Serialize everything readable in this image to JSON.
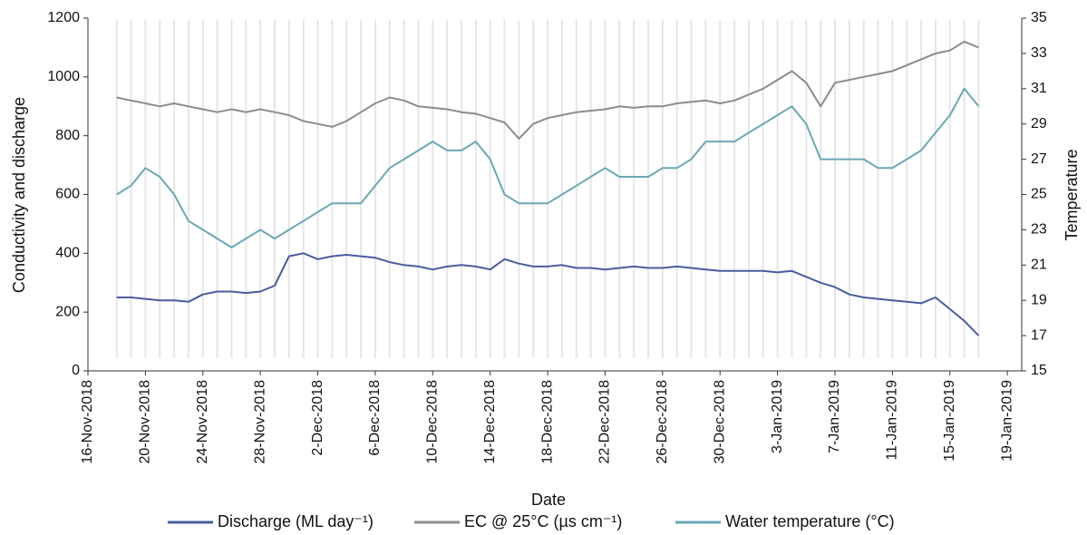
{
  "chart_data": {
    "type": "line",
    "x_label": "Date",
    "y_label": "Conductivity and discharge",
    "y2_label": "Temperature",
    "x": [
      "2018-11-18",
      "2018-11-19",
      "2018-11-20",
      "2018-11-21",
      "2018-11-22",
      "2018-11-23",
      "2018-11-24",
      "2018-11-25",
      "2018-11-26",
      "2018-11-27",
      "2018-11-28",
      "2018-11-29",
      "2018-11-30",
      "2018-12-01",
      "2018-12-02",
      "2018-12-03",
      "2018-12-04",
      "2018-12-05",
      "2018-12-06",
      "2018-12-07",
      "2018-12-08",
      "2018-12-09",
      "2018-12-10",
      "2018-12-11",
      "2018-12-12",
      "2018-12-13",
      "2018-12-14",
      "2018-12-15",
      "2018-12-16",
      "2018-12-17",
      "2018-12-18",
      "2018-12-19",
      "2018-12-20",
      "2018-12-21",
      "2018-12-22",
      "2018-12-23",
      "2018-12-24",
      "2018-12-25",
      "2018-12-26",
      "2018-12-27",
      "2018-12-28",
      "2018-12-29",
      "2018-12-30",
      "2018-12-31",
      "2019-01-01",
      "2019-01-02",
      "2019-01-03",
      "2019-01-04",
      "2019-01-05",
      "2019-01-06",
      "2019-01-07",
      "2019-01-08",
      "2019-01-09",
      "2019-01-10",
      "2019-01-11",
      "2019-01-12",
      "2019-01-13",
      "2019-01-14",
      "2019-01-15",
      "2019-01-16",
      "2019-01-17"
    ],
    "series": [
      {
        "name": "Discharge (ML day⁻¹)",
        "color": "#4a5c9e",
        "values": [
          250,
          250,
          245,
          240,
          240,
          235,
          260,
          270,
          270,
          265,
          270,
          290,
          390,
          400,
          380,
          390,
          395,
          390,
          385,
          370,
          360,
          355,
          345,
          355,
          360,
          355,
          345,
          380,
          365,
          355,
          355,
          360,
          350,
          350,
          345,
          350,
          355,
          350,
          350,
          355,
          350,
          345,
          340,
          340,
          340,
          340,
          335,
          340,
          320,
          300,
          285,
          260,
          250,
          245,
          240,
          235,
          230,
          250,
          210,
          170,
          120
        ]
      },
      {
        "name": "EC @ 25°C (µs cm⁻¹)",
        "color": "#8c8c8c",
        "values": [
          930,
          920,
          910,
          900,
          910,
          900,
          890,
          880,
          890,
          880,
          890,
          880,
          870,
          850,
          840,
          830,
          850,
          880,
          910,
          930,
          920,
          900,
          895,
          890,
          880,
          875,
          860,
          845,
          790,
          840,
          860,
          870,
          880,
          885,
          890,
          900,
          895,
          900,
          900,
          910,
          915,
          920,
          910,
          920,
          940,
          960,
          990,
          1020,
          980,
          900,
          980,
          990,
          1000,
          1010,
          1020,
          1040,
          1060,
          1080,
          1090,
          1120,
          1100
        ]
      },
      {
        "name": "Water temperature (°C)",
        "color": "#6aa9b4",
        "axis": "y2",
        "values": [
          25,
          25.5,
          26.5,
          26,
          25,
          23.5,
          23,
          22.5,
          22,
          22.5,
          23,
          22.5,
          23,
          23.5,
          24,
          24.5,
          24.5,
          24.5,
          25.5,
          26.5,
          27,
          27.5,
          28,
          27.5,
          27.5,
          28,
          27,
          25,
          24.5,
          24.5,
          24.5,
          25,
          25.5,
          26,
          26.5,
          26,
          26,
          26,
          26.5,
          26.5,
          27,
          28,
          28,
          28,
          28.5,
          29,
          29.5,
          30,
          29,
          27,
          27,
          27,
          27,
          26.5,
          26.5,
          27,
          27.5,
          28.5,
          29.5,
          31,
          30
        ]
      }
    ],
    "xlim": [
      "2018-11-16",
      "2019-01-20"
    ],
    "xticks": [
      {
        "value": "2018-11-16",
        "label": "16-Nov-2018"
      },
      {
        "value": "2018-11-20",
        "label": "20-Nov-2018"
      },
      {
        "value": "2018-11-24",
        "label": "24-Nov-2018"
      },
      {
        "value": "2018-11-28",
        "label": "28-Nov-2018"
      },
      {
        "value": "2018-12-02",
        "label": "2-Dec-2018"
      },
      {
        "value": "2018-12-06",
        "label": "6-Dec-2018"
      },
      {
        "value": "2018-12-10",
        "label": "10-Dec-2018"
      },
      {
        "value": "2018-12-14",
        "label": "14-Dec-2018"
      },
      {
        "value": "2018-12-18",
        "label": "18-Dec-2018"
      },
      {
        "value": "2018-12-22",
        "label": "22-Dec-2018"
      },
      {
        "value": "2018-12-26",
        "label": "26-Dec-2018"
      },
      {
        "value": "2018-12-30",
        "label": "30-Dec-2018"
      },
      {
        "value": "2019-01-03",
        "label": "3-Jan-2019"
      },
      {
        "value": "2019-01-07",
        "label": "7-Jan-2019"
      },
      {
        "value": "2019-01-11",
        "label": "11-Jan-2019"
      },
      {
        "value": "2019-01-15",
        "label": "15-Jan-2019"
      },
      {
        "value": "2019-01-19",
        "label": "19-Jan-2019"
      }
    ],
    "ylim": [
      0,
      1200
    ],
    "yticks": [
      0,
      200,
      400,
      600,
      800,
      1000,
      1200
    ],
    "y2lim": [
      15,
      35
    ],
    "y2ticks": [
      15,
      17,
      19,
      21,
      23,
      25,
      27,
      29,
      31,
      33,
      35
    ],
    "xgrid": true,
    "legend": "bottom"
  }
}
